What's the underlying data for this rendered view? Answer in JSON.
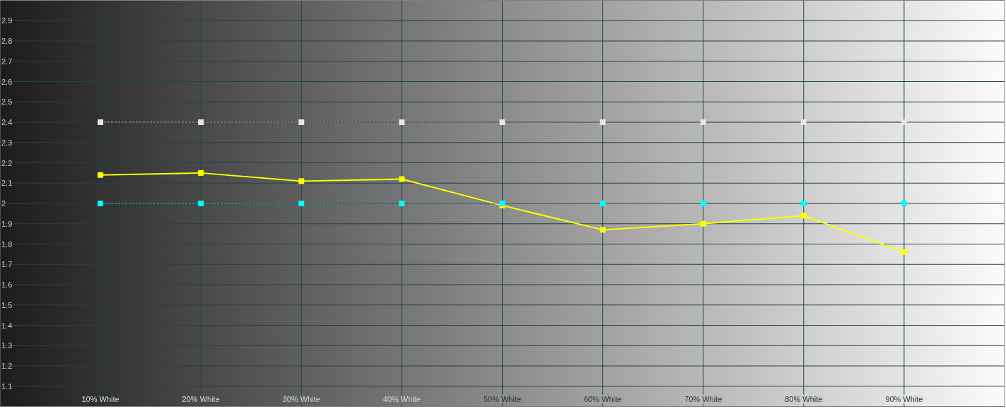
{
  "chart_data": {
    "type": "line",
    "x": [
      10,
      20,
      30,
      40,
      50,
      60,
      70,
      80,
      90
    ],
    "xlim": [
      0,
      100
    ],
    "xticks": [
      {
        "value": 10,
        "label": "10% White"
      },
      {
        "value": 20,
        "label": "20% White"
      },
      {
        "value": 30,
        "label": "30% White"
      },
      {
        "value": 40,
        "label": "40% White"
      },
      {
        "value": 50,
        "label": "50% White"
      },
      {
        "value": 60,
        "label": "60% White"
      },
      {
        "value": 70,
        "label": "70% White"
      },
      {
        "value": 80,
        "label": "80% White"
      },
      {
        "value": 90,
        "label": "90% White"
      }
    ],
    "ylim": [
      1,
      3
    ],
    "yticks": [
      1.1,
      1.2,
      1.3,
      1.4,
      1.5,
      1.6,
      1.7,
      1.8,
      1.9,
      2,
      2.1,
      2.2,
      2.3,
      2.4,
      2.5,
      2.6,
      2.7,
      2.8,
      2.9
    ],
    "grid": true,
    "marker": "square",
    "series": [
      {
        "color": "#e6e6e6",
        "line_style": "dashed",
        "values": [
          2.4,
          2.4,
          2.4,
          2.4,
          2.4,
          2.4,
          2.4,
          2.4,
          2.4
        ]
      },
      {
        "color": "#ffff00",
        "line_style": "solid",
        "values": [
          2.14,
          2.15,
          2.11,
          2.12,
          1.99,
          1.87,
          1.9,
          1.94,
          1.76
        ]
      },
      {
        "color": "#00ffff",
        "line_style": "dashed",
        "values": [
          2,
          2,
          2,
          2,
          2,
          2,
          2,
          2,
          2
        ]
      }
    ]
  }
}
